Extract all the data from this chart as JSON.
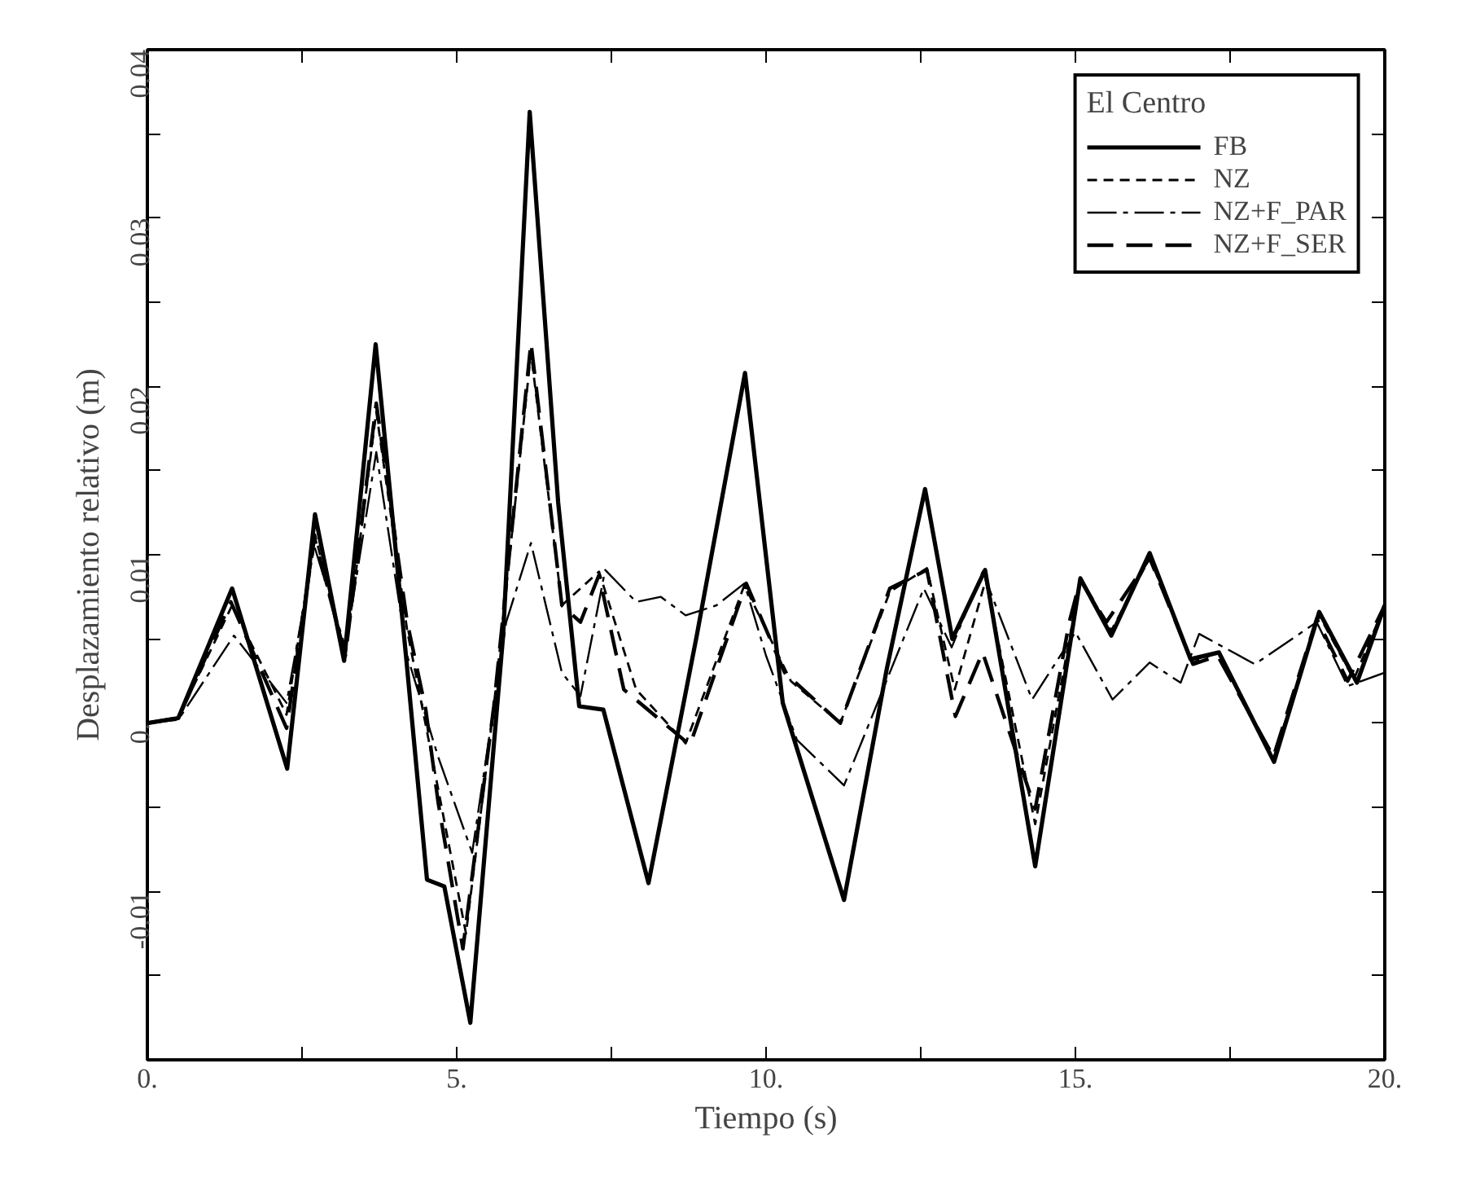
{
  "chart_data": {
    "type": "line",
    "xlabel": "Tiempo (s)",
    "ylabel": "Desplazamiento relativo (m)",
    "legend_title": "El Centro",
    "xlim": [
      0,
      20
    ],
    "ylim": [
      -0.02,
      0.04
    ],
    "xticks": [
      {
        "value": 0,
        "label": "0."
      },
      {
        "value": 2.5,
        "label": null
      },
      {
        "value": 5,
        "label": "5."
      },
      {
        "value": 7.5,
        "label": null
      },
      {
        "value": 10,
        "label": "10."
      },
      {
        "value": 12.5,
        "label": null
      },
      {
        "value": 15,
        "label": "15."
      },
      {
        "value": 17.5,
        "label": null
      },
      {
        "value": 20,
        "label": "20."
      }
    ],
    "yticks": [
      {
        "value": -0.02,
        "label": null
      },
      {
        "value": -0.015,
        "label": null
      },
      {
        "value": -0.01,
        "label": "-0.01"
      },
      {
        "value": -0.005,
        "label": null
      },
      {
        "value": 0,
        "label": "0."
      },
      {
        "value": 0.005,
        "label": null
      },
      {
        "value": 0.01,
        "label": "0.01"
      },
      {
        "value": 0.015,
        "label": null
      },
      {
        "value": 0.02,
        "label": "0.02"
      },
      {
        "value": 0.025,
        "label": null
      },
      {
        "value": 0.03,
        "label": "0.03"
      },
      {
        "value": 0.035,
        "label": null
      },
      {
        "value": 0.04,
        "label": "0.04"
      }
    ],
    "grid": false,
    "legend": "top right",
    "marker": "none",
    "series": [
      {
        "name": "FB",
        "color": "#000000",
        "line_style": "solid",
        "x": [
          0,
          0.5,
          1.37,
          2.26,
          2.71,
          3.18,
          3.69,
          4.18,
          4.52,
          4.8,
          5.22,
          5.75,
          6.18,
          6.64,
          6.98,
          7.37,
          8.1,
          8.88,
          9.66,
          10.27,
          11.26,
          11.95,
          12.57,
          13.01,
          13.54,
          14.35,
          15.08,
          15.58,
          16.2,
          16.86,
          17.32,
          18.21,
          18.94,
          19.55,
          20
        ],
        "values": [
          0,
          0.0003,
          0.008,
          -0.0027,
          0.0124,
          0.0037,
          0.0225,
          0.004,
          -0.0093,
          -0.0097,
          -0.0178,
          0.0052,
          0.0363,
          0.0131,
          0.001,
          0.0008,
          -0.0095,
          0.0052,
          0.0208,
          0.0012,
          -0.0105,
          0.0032,
          0.0139,
          0.005,
          0.0091,
          -0.0085,
          0.0086,
          0.0052,
          0.0101,
          0.0038,
          0.0042,
          -0.0023,
          0.0066,
          0.0024,
          0.007
        ]
      },
      {
        "name": "NZ",
        "color": "#000000",
        "line_style": "dashed",
        "x": [
          0,
          0.5,
          1.37,
          2.25,
          2.71,
          3.2,
          3.7,
          4.2,
          4.6,
          5.15,
          5.6,
          6.2,
          6.7,
          7.3,
          7.9,
          8.7,
          9.65,
          10.4,
          11.2,
          12.0,
          12.6,
          13.05,
          13.55,
          14.35,
          15.08,
          15.58,
          16.2,
          16.9,
          17.3,
          18.2,
          18.94,
          19.5,
          20
        ],
        "values": [
          0,
          0.0003,
          0.007,
          0.0005,
          0.0112,
          0.004,
          0.0185,
          0.0055,
          -0.002,
          -0.0125,
          0.001,
          0.022,
          0.007,
          0.009,
          0.002,
          -0.0012,
          0.0082,
          0.0025,
          0.0,
          0.0078,
          0.0092,
          0.002,
          0.0085,
          -0.006,
          0.0085,
          0.0055,
          0.0098,
          0.0036,
          0.0042,
          -0.0021,
          0.0064,
          0.0026,
          0.007
        ]
      },
      {
        "name": "NZ+F_PAR",
        "color": "#000000",
        "line_style": "dashdot",
        "x": [
          0,
          0.5,
          1.4,
          2.25,
          2.7,
          3.2,
          3.7,
          4.2,
          4.7,
          5.25,
          5.8,
          6.2,
          6.7,
          7.0,
          7.4,
          7.9,
          8.3,
          8.7,
          9.2,
          9.65,
          10.0,
          10.5,
          11.26,
          12.0,
          12.55,
          13.0,
          13.5,
          14.3,
          15.0,
          15.6,
          16.2,
          16.7,
          17.0,
          17.9,
          18.9,
          19.4,
          20
        ],
        "values": [
          0,
          0.0002,
          0.0052,
          0.0012,
          0.0105,
          0.0045,
          0.0161,
          0.004,
          -0.002,
          -0.0077,
          0.006,
          0.0107,
          0.003,
          0.0016,
          0.0091,
          0.0072,
          0.0075,
          0.0064,
          0.007,
          0.0083,
          0.004,
          -0.001,
          -0.0037,
          0.003,
          0.008,
          0.0045,
          0.009,
          0.0014,
          0.0054,
          0.0014,
          0.0036,
          0.0024,
          0.0053,
          0.0035,
          0.006,
          0.0022,
          0.003
        ]
      },
      {
        "name": "NZ+F_SER",
        "color": "#000000",
        "line_style": "longdash",
        "x": [
          0,
          0.5,
          1.35,
          2.25,
          2.7,
          3.2,
          3.7,
          4.2,
          4.5,
          4.7,
          5.1,
          5.6,
          6.2,
          6.7,
          7.0,
          7.3,
          7.7,
          8.77,
          9.68,
          10.3,
          11.2,
          12.0,
          12.6,
          13.06,
          13.5,
          14.35,
          14.9,
          15.08,
          15.5,
          16.2,
          16.9,
          17.3,
          18.2,
          18.9,
          19.4,
          20
        ],
        "values": [
          0,
          0.0003,
          0.0072,
          -0.0003,
          0.011,
          0.004,
          0.019,
          0.006,
          0.0008,
          -0.0047,
          -0.0134,
          0.001,
          0.0226,
          0.007,
          0.006,
          0.0088,
          0.002,
          -0.0013,
          0.0083,
          0.003,
          0.0,
          0.008,
          0.0091,
          0.0004,
          0.0042,
          -0.0051,
          0.006,
          0.0085,
          0.006,
          0.0098,
          0.0035,
          0.004,
          -0.002,
          0.0062,
          0.0025,
          0.007
        ]
      }
    ]
  }
}
